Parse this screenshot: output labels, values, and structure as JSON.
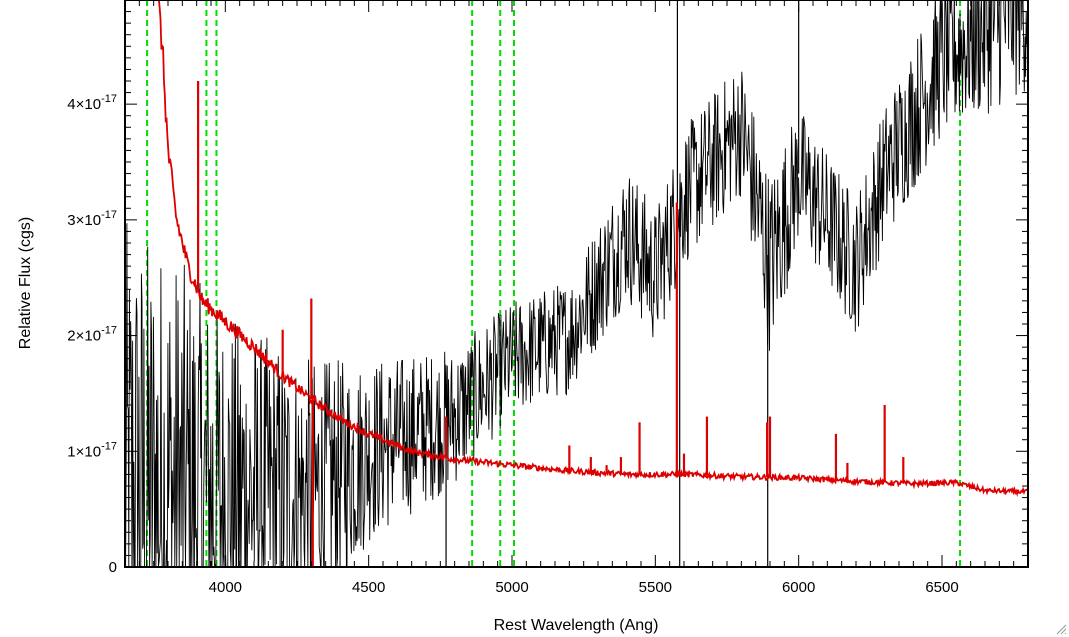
{
  "chart_data": {
    "type": "line",
    "title": "",
    "xlabel": "Rest Wavelength (Ang)",
    "ylabel": "Relative Flux (cgs)",
    "xlim": [
      3650,
      6800
    ],
    "ylim": [
      0,
      4.9e-17
    ],
    "x_ticks": [
      4000,
      4500,
      5000,
      5500,
      6000,
      6500
    ],
    "x_tick_labels": [
      "4000",
      "4500",
      "5000",
      "5500",
      "6000",
      "6500"
    ],
    "y_ticks": [
      0,
      1e-17,
      2e-17,
      3e-17,
      4e-17
    ],
    "y_tick_labels": [
      {
        "mantissa": "0",
        "exponent": ""
      },
      {
        "mantissa": "1×10",
        "exponent": "-17"
      },
      {
        "mantissa": "2×10",
        "exponent": "-17"
      },
      {
        "mantissa": "3×10",
        "exponent": "-17"
      },
      {
        "mantissa": "4×10",
        "exponent": "-17"
      }
    ],
    "grid": false,
    "legend": "none",
    "reference_lines": {
      "color": "#00dd00",
      "style": "dashed",
      "x": [
        3727,
        3934,
        3969,
        4861,
        4959,
        5007,
        6563
      ]
    },
    "series": [
      {
        "color": "#000000",
        "style": "noisy spectrum",
        "envelope": [
          {
            "x": 3650,
            "y": 5e-18,
            "noise": 2.5e-17
          },
          {
            "x": 3800,
            "y": 6e-18,
            "noise": 2.2e-17
          },
          {
            "x": 4000,
            "y": 6e-18,
            "noise": 1.6e-17
          },
          {
            "x": 4300,
            "y": 6e-18,
            "noise": 1.2e-17
          },
          {
            "x": 4500,
            "y": 1e-17,
            "noise": 8e-18
          },
          {
            "x": 4800,
            "y": 1.3e-17,
            "noise": 6e-18
          },
          {
            "x": 5000,
            "y": 1.8e-17,
            "noise": 5e-18
          },
          {
            "x": 5200,
            "y": 2e-17,
            "noise": 5e-18
          },
          {
            "x": 5400,
            "y": 2.9e-17,
            "noise": 6e-18
          },
          {
            "x": 5500,
            "y": 2.5e-17,
            "noise": 6e-18
          },
          {
            "x": 5600,
            "y": 3.2e-17,
            "noise": 6e-18
          },
          {
            "x": 5800,
            "y": 3.8e-17,
            "noise": 6e-18
          },
          {
            "x": 5900,
            "y": 2.6e-17,
            "noise": 8e-18
          },
          {
            "x": 6000,
            "y": 3.4e-17,
            "noise": 6e-18
          },
          {
            "x": 6200,
            "y": 2.6e-17,
            "noise": 6e-18
          },
          {
            "x": 6300,
            "y": 3.4e-17,
            "noise": 6e-18
          },
          {
            "x": 6500,
            "y": 4.4e-17,
            "noise": 7e-18
          },
          {
            "x": 6800,
            "y": 4.9e-17,
            "noise": 8e-18
          }
        ],
        "spikes": [
          {
            "x": 4770,
            "y": 0
          },
          {
            "x": 5577,
            "y": 4.9e-17
          },
          {
            "x": 5585,
            "y": 0
          },
          {
            "x": 5892,
            "y": 0
          },
          {
            "x": 6000,
            "y": 4.9e-17
          }
        ]
      },
      {
        "color": "#dd0000",
        "style": "error spectrum",
        "points": [
          {
            "x": 3765,
            "y": 4.9e-17
          },
          {
            "x": 3780,
            "y": 4.5e-17
          },
          {
            "x": 3800,
            "y": 3.6e-17
          },
          {
            "x": 3830,
            "y": 3e-17
          },
          {
            "x": 3870,
            "y": 2.6e-17
          },
          {
            "x": 3920,
            "y": 2.3e-17
          },
          {
            "x": 4000,
            "y": 2.12e-17
          },
          {
            "x": 4100,
            "y": 1.9e-17
          },
          {
            "x": 4200,
            "y": 1.65e-17
          },
          {
            "x": 4300,
            "y": 1.45e-17
          },
          {
            "x": 4400,
            "y": 1.28e-17
          },
          {
            "x": 4500,
            "y": 1.15e-17
          },
          {
            "x": 4650,
            "y": 1e-17
          },
          {
            "x": 4800,
            "y": 9.3e-18
          },
          {
            "x": 5000,
            "y": 8.8e-18
          },
          {
            "x": 5200,
            "y": 8.3e-18
          },
          {
            "x": 5400,
            "y": 8e-18
          },
          {
            "x": 5600,
            "y": 8e-18
          },
          {
            "x": 5800,
            "y": 7.8e-18
          },
          {
            "x": 6000,
            "y": 7.7e-18
          },
          {
            "x": 6200,
            "y": 7.4e-18
          },
          {
            "x": 6400,
            "y": 7.2e-18
          },
          {
            "x": 6550,
            "y": 7.3e-18
          },
          {
            "x": 6650,
            "y": 6.6e-18
          },
          {
            "x": 6800,
            "y": 6.5e-18
          }
        ],
        "spikes": [
          {
            "x": 3905,
            "y": 4.2e-17
          },
          {
            "x": 4200,
            "y": 2.05e-17
          },
          {
            "x": 4300,
            "y": 2.32e-17
          },
          {
            "x": 4305,
            "y": 0
          },
          {
            "x": 4770,
            "y": 1.3e-17
          },
          {
            "x": 5200,
            "y": 1.05e-17
          },
          {
            "x": 5275,
            "y": 9.5e-18
          },
          {
            "x": 5330,
            "y": 8.8e-18
          },
          {
            "x": 5380,
            "y": 9.5e-18
          },
          {
            "x": 5445,
            "y": 1.25e-17
          },
          {
            "x": 5575,
            "y": 3.15e-17
          },
          {
            "x": 5600,
            "y": 9.8e-18
          },
          {
            "x": 5680,
            "y": 1.3e-17
          },
          {
            "x": 5890,
            "y": 1.25e-17
          },
          {
            "x": 5900,
            "y": 1.3e-17
          },
          {
            "x": 6130,
            "y": 1.15e-17
          },
          {
            "x": 6170,
            "y": 9e-18
          },
          {
            "x": 6300,
            "y": 1.4e-17
          },
          {
            "x": 6365,
            "y": 9.5e-18
          }
        ]
      }
    ]
  }
}
